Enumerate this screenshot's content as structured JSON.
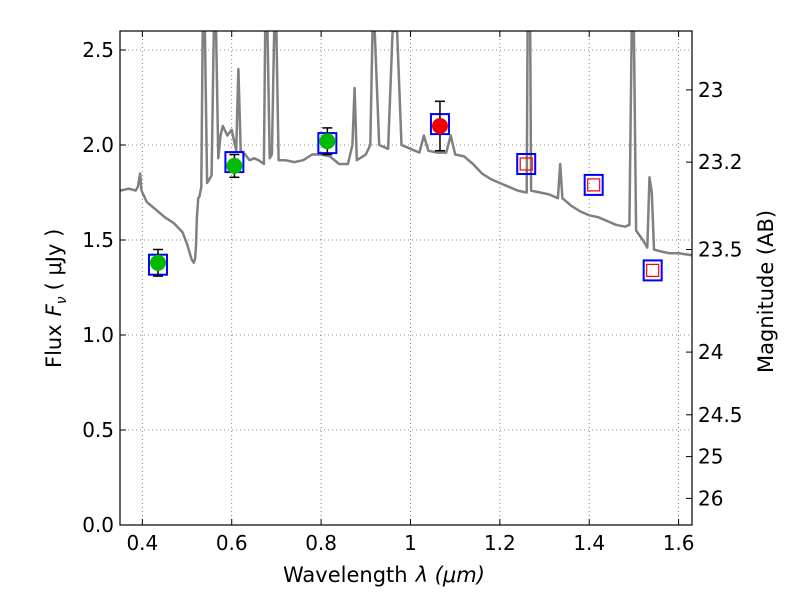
{
  "chart_data": {
    "type": "scatter",
    "title": "",
    "xlabel": "Wavelength",
    "xlabel_symbol": "λ (μm)",
    "ylabel": "Flux",
    "ylabel_symbol": "F",
    "ylabel_sub": "ν",
    "ylabel_unit": "( μJy )",
    "y2label": "Magnitude (AB)",
    "xlim": [
      0.35,
      1.63
    ],
    "ylim": [
      0.0,
      2.6
    ],
    "grid": true,
    "xticks": [
      0.4,
      0.6,
      0.8,
      1.0,
      1.2,
      1.4,
      1.6
    ],
    "xtick_labels": [
      "0.4",
      "0.6",
      "0.8",
      "1",
      "1.2",
      "1.4",
      "1.6"
    ],
    "yticks": [
      0.0,
      0.5,
      1.0,
      1.5,
      2.0,
      2.5
    ],
    "ytick_labels": [
      "0.0",
      "0.5",
      "1.0",
      "1.5",
      "2.0",
      "2.5"
    ],
    "y2ticks": [
      {
        "label": "23",
        "flux": 2.29
      },
      {
        "label": "23.2",
        "flux": 1.91
      },
      {
        "label": "23.5",
        "flux": 1.45
      },
      {
        "label": "24",
        "flux": 0.91
      },
      {
        "label": "24.5",
        "flux": 0.58
      },
      {
        "label": "25",
        "flux": 0.36
      },
      {
        "label": "26",
        "flux": 0.14
      }
    ],
    "observed_points": [
      {
        "x": 0.435,
        "y": 1.38,
        "err": 0.07,
        "color": "#00bb00"
      },
      {
        "x": 0.606,
        "y": 1.89,
        "err": 0.06,
        "color": "#00bb00"
      },
      {
        "x": 0.814,
        "y": 2.02,
        "err": 0.07,
        "color": "#00bb00"
      },
      {
        "x": 1.066,
        "y": 2.1,
        "err": 0.13,
        "color": "#ee0000"
      }
    ],
    "model_points": [
      {
        "x": 0.435,
        "y": 1.37
      },
      {
        "x": 0.606,
        "y": 1.91
      },
      {
        "x": 0.814,
        "y": 2.01
      },
      {
        "x": 1.066,
        "y": 2.11
      },
      {
        "x": 1.259,
        "y": 1.9
      },
      {
        "x": 1.41,
        "y": 1.79
      },
      {
        "x": 1.542,
        "y": 1.34
      }
    ],
    "upper_limit_points": [
      {
        "x": 1.259,
        "y": 1.9
      },
      {
        "x": 1.41,
        "y": 1.79
      },
      {
        "x": 1.542,
        "y": 1.34
      }
    ],
    "spectrum": [
      [
        0.35,
        1.76
      ],
      [
        0.37,
        1.77
      ],
      [
        0.385,
        1.76
      ],
      [
        0.39,
        1.78
      ],
      [
        0.395,
        1.85
      ],
      [
        0.398,
        1.76
      ],
      [
        0.41,
        1.7
      ],
      [
        0.43,
        1.66
      ],
      [
        0.45,
        1.62
      ],
      [
        0.47,
        1.59
      ],
      [
        0.49,
        1.54
      ],
      [
        0.5,
        1.48
      ],
      [
        0.51,
        1.4
      ],
      [
        0.515,
        1.38
      ],
      [
        0.518,
        1.4
      ],
      [
        0.52,
        1.47
      ],
      [
        0.522,
        1.62
      ],
      [
        0.525,
        1.72
      ],
      [
        0.528,
        1.73
      ],
      [
        0.532,
        1.78
      ],
      [
        0.535,
        2.6
      ],
      [
        0.54,
        2.6
      ],
      [
        0.545,
        1.8
      ],
      [
        0.55,
        1.82
      ],
      [
        0.555,
        1.84
      ],
      [
        0.56,
        2.6
      ],
      [
        0.565,
        2.6
      ],
      [
        0.57,
        1.93
      ],
      [
        0.575,
        2.05
      ],
      [
        0.58,
        2.1
      ],
      [
        0.59,
        2.05
      ],
      [
        0.6,
        2.08
      ],
      [
        0.61,
        1.97
      ],
      [
        0.615,
        2.4
      ],
      [
        0.62,
        1.97
      ],
      [
        0.63,
        1.95
      ],
      [
        0.64,
        1.92
      ],
      [
        0.65,
        1.93
      ],
      [
        0.66,
        1.92
      ],
      [
        0.672,
        1.9
      ],
      [
        0.675,
        2.6
      ],
      [
        0.68,
        2.6
      ],
      [
        0.685,
        1.93
      ],
      [
        0.69,
        1.95
      ],
      [
        0.695,
        2.6
      ],
      [
        0.7,
        2.6
      ],
      [
        0.705,
        1.92
      ],
      [
        0.72,
        1.92
      ],
      [
        0.74,
        1.91
      ],
      [
        0.76,
        1.92
      ],
      [
        0.78,
        1.95
      ],
      [
        0.8,
        1.95
      ],
      [
        0.82,
        1.94
      ],
      [
        0.84,
        1.9
      ],
      [
        0.86,
        1.9
      ],
      [
        0.87,
        2.0
      ],
      [
        0.875,
        2.3
      ],
      [
        0.88,
        1.92
      ],
      [
        0.9,
        1.95
      ],
      [
        0.91,
        2.0
      ],
      [
        0.915,
        2.6
      ],
      [
        0.92,
        2.6
      ],
      [
        0.93,
        2.0
      ],
      [
        0.95,
        1.98
      ],
      [
        0.96,
        2.6
      ],
      [
        0.97,
        2.6
      ],
      [
        0.98,
        2.0
      ],
      [
        1.0,
        1.98
      ],
      [
        1.02,
        1.96
      ],
      [
        1.03,
        2.05
      ],
      [
        1.04,
        1.97
      ],
      [
        1.06,
        1.96
      ],
      [
        1.08,
        1.96
      ],
      [
        1.09,
        2.05
      ],
      [
        1.1,
        1.95
      ],
      [
        1.12,
        1.94
      ],
      [
        1.14,
        1.9
      ],
      [
        1.16,
        1.85
      ],
      [
        1.18,
        1.82
      ],
      [
        1.2,
        1.8
      ],
      [
        1.22,
        1.78
      ],
      [
        1.24,
        1.76
      ],
      [
        1.26,
        1.75
      ],
      [
        1.262,
        2.6
      ],
      [
        1.268,
        2.6
      ],
      [
        1.27,
        1.76
      ],
      [
        1.29,
        1.75
      ],
      [
        1.31,
        1.74
      ],
      [
        1.33,
        1.72
      ],
      [
        1.335,
        1.9
      ],
      [
        1.34,
        1.72
      ],
      [
        1.36,
        1.68
      ],
      [
        1.38,
        1.65
      ],
      [
        1.4,
        1.63
      ],
      [
        1.42,
        1.62
      ],
      [
        1.44,
        1.6
      ],
      [
        1.46,
        1.58
      ],
      [
        1.48,
        1.57
      ],
      [
        1.49,
        1.58
      ],
      [
        1.495,
        2.6
      ],
      [
        1.5,
        2.6
      ],
      [
        1.505,
        1.55
      ],
      [
        1.52,
        1.5
      ],
      [
        1.53,
        1.46
      ],
      [
        1.535,
        1.83
      ],
      [
        1.54,
        1.75
      ],
      [
        1.545,
        1.45
      ],
      [
        1.56,
        1.44
      ],
      [
        1.58,
        1.43
      ],
      [
        1.6,
        1.43
      ],
      [
        1.63,
        1.42
      ]
    ]
  }
}
